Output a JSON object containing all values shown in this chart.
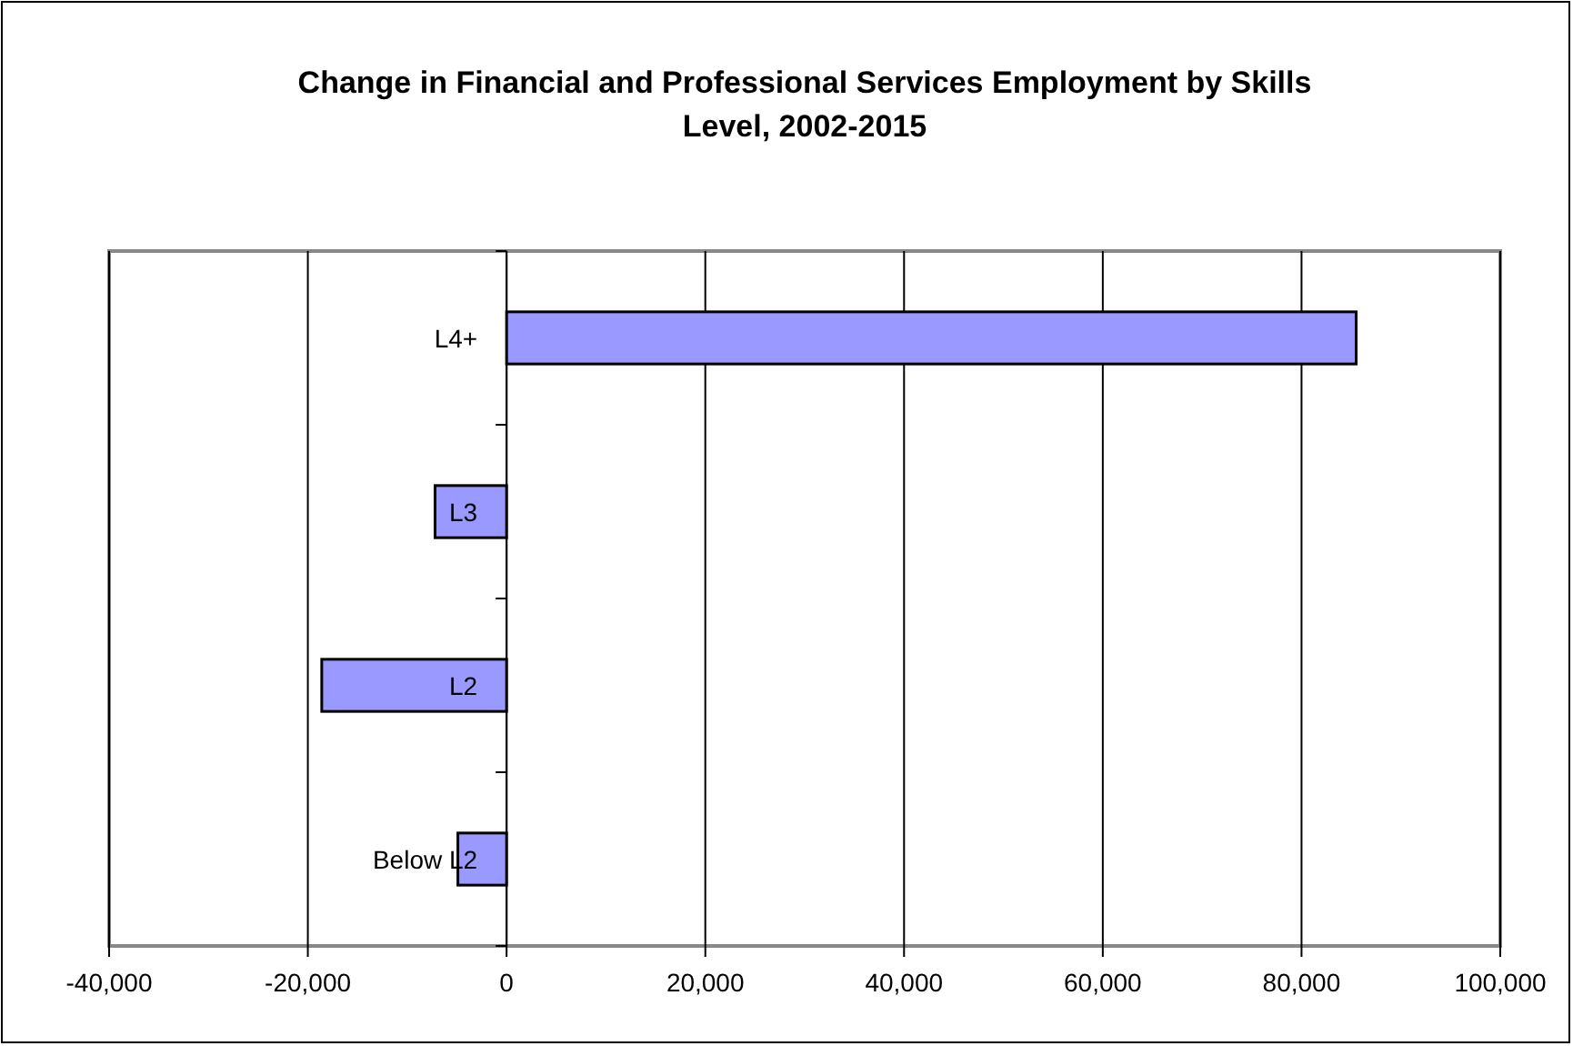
{
  "chart_data": {
    "type": "bar",
    "orientation": "horizontal",
    "title": "Change in Financial and Professional Services Employment by Skills Level, 2002-2015",
    "categories": [
      "L4+",
      "L3",
      "L2",
      "Below L2"
    ],
    "values": [
      85500,
      -7200,
      -18600,
      -4900
    ],
    "color": "#9999ff",
    "xlim": [
      -40000,
      100000
    ],
    "xticks": [
      {
        "value": -40000,
        "label": "-40,000"
      },
      {
        "value": -20000,
        "label": "-20,000"
      },
      0,
      {
        "value": 20000,
        "label": "20,000"
      },
      {
        "value": 40000,
        "label": "40,000"
      },
      {
        "value": 60000,
        "label": "60,000"
      },
      {
        "value": 80000,
        "label": "80,000"
      },
      {
        "value": 100000,
        "label": "100,000"
      }
    ],
    "grid": "x"
  }
}
